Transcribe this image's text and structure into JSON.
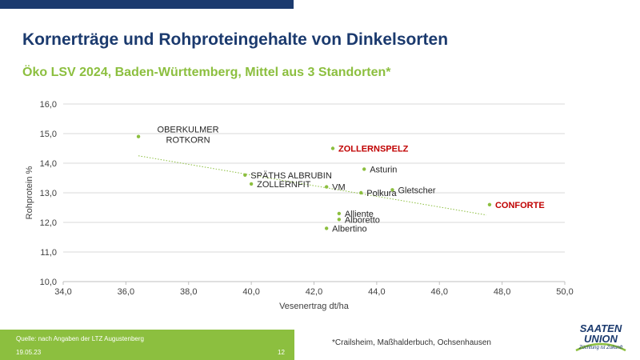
{
  "header": {
    "title": "Kornerträge und Rohproteingehalte von Dinkelsorten",
    "subtitle": "Öko LSV 2024, Baden-Württemberg, Mittel aus 3 Standorten*"
  },
  "footer": {
    "source": "Quelle: nach Angaben der LTZ Augustenberg",
    "date": "19.05.23",
    "page": "12",
    "footnote": "*Crailsheim, Maßhalderbuch, Ochsenhausen"
  },
  "logo": {
    "line1": "SAATEN",
    "line2": "UNION",
    "tagline": "Züchtung ist Zukunft"
  },
  "colors": {
    "navy": "#1b3a6e",
    "green": "#8cbf3f",
    "marker": "#8cbf3f",
    "highlight": "#c00000"
  },
  "chart_data": {
    "type": "scatter",
    "xlabel": "Vesenertrag dt/ha",
    "ylabel": "Rohprotein %",
    "xlim": [
      34,
      50
    ],
    "ylim": [
      10,
      16
    ],
    "xticks": [
      "34,0",
      "36,0",
      "38,0",
      "40,0",
      "42,0",
      "44,0",
      "46,0",
      "48,0",
      "50,0"
    ],
    "yticks": [
      "10,0",
      "11,0",
      "12,0",
      "13,0",
      "14,0",
      "15,0",
      "16,0"
    ],
    "grid": "horizontal",
    "trendline": {
      "style": "dotted",
      "from": [
        36.4,
        14.25
      ],
      "to": [
        47.5,
        12.25
      ]
    },
    "points": [
      {
        "label": "OBERKULMER\nROTKORN",
        "x": 36.4,
        "y": 14.9,
        "highlight": false
      },
      {
        "label": "SPÄTHS ALBRUBIN",
        "x": 39.8,
        "y": 13.6,
        "highlight": false
      },
      {
        "label": "ZOLLERNFIT",
        "x": 40.0,
        "y": 13.3,
        "highlight": false
      },
      {
        "label": "VM",
        "x": 42.4,
        "y": 13.2,
        "highlight": false
      },
      {
        "label": "ZOLLERNSPELZ",
        "x": 42.6,
        "y": 14.5,
        "highlight": true
      },
      {
        "label": "Asturin",
        "x": 43.6,
        "y": 13.8,
        "highlight": false
      },
      {
        "label": "Polkura",
        "x": 43.5,
        "y": 13.0,
        "highlight": false
      },
      {
        "label": "Gletscher",
        "x": 44.5,
        "y": 13.1,
        "highlight": false
      },
      {
        "label": "Alliente",
        "x": 42.8,
        "y": 12.3,
        "highlight": false
      },
      {
        "label": "Alboretto",
        "x": 42.8,
        "y": 12.1,
        "highlight": false
      },
      {
        "label": "Albertino",
        "x": 42.4,
        "y": 11.8,
        "highlight": false
      },
      {
        "label": "CONFORTE",
        "x": 47.6,
        "y": 12.6,
        "highlight": true
      }
    ]
  }
}
